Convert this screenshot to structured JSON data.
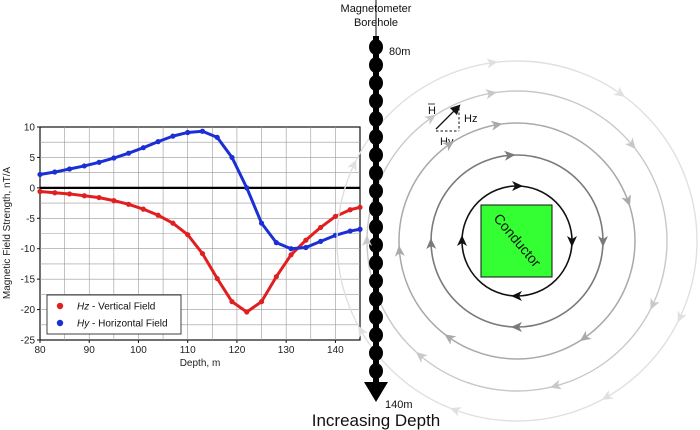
{
  "borehole": {
    "title_line1": "Magnetometer",
    "title_line2": "Borehole",
    "top_depth": "80m",
    "bottom_depth": "140m",
    "direction_label": "Increasing Depth"
  },
  "vector_diagram": {
    "h_label": "H",
    "hz_label": "Hz",
    "hy_label": "Hy"
  },
  "conductor": {
    "label": "Conductor",
    "color": "#33ff33"
  },
  "chart_data": {
    "type": "line",
    "xlabel": "Depth, m",
    "ylabel": "Magnetic Field Strength, nT/A",
    "xlim": [
      80,
      145
    ],
    "ylim": [
      -25,
      10
    ],
    "x_ticks": [
      80,
      90,
      100,
      110,
      120,
      130,
      140
    ],
    "y_ticks": [
      10,
      5,
      0,
      -5,
      -10,
      -15,
      -20,
      -25
    ],
    "grid": true,
    "legend_position": "bottom-left",
    "series": [
      {
        "name": "Hz",
        "legend_suffix": " - Vertical Field",
        "color": "#e02020",
        "x": [
          80,
          83,
          86,
          89,
          92,
          95,
          98,
          101,
          104,
          107,
          110,
          113,
          116,
          119,
          122,
          125,
          128,
          131,
          134,
          137,
          140,
          143,
          145
        ],
        "values": [
          -0.6,
          -0.8,
          -1.0,
          -1.3,
          -1.6,
          -2.1,
          -2.7,
          -3.5,
          -4.5,
          -5.8,
          -7.7,
          -10.8,
          -14.9,
          -18.7,
          -20.4,
          -18.7,
          -14.6,
          -11.0,
          -8.6,
          -6.5,
          -4.7,
          -3.6,
          -3.2
        ]
      },
      {
        "name": "Hy",
        "legend_suffix": " - Horizontal Field",
        "color": "#1c2fd4",
        "x": [
          80,
          83,
          86,
          89,
          92,
          95,
          98,
          101,
          104,
          107,
          110,
          113,
          116,
          119,
          122,
          125,
          128,
          131,
          134,
          137,
          140,
          143,
          145
        ],
        "values": [
          2.2,
          2.6,
          3.1,
          3.6,
          4.2,
          4.9,
          5.7,
          6.6,
          7.6,
          8.5,
          9.1,
          9.3,
          8.3,
          5.0,
          0.0,
          -5.8,
          -9.0,
          -10.0,
          -9.8,
          -8.8,
          -7.8,
          -7.1,
          -6.8
        ]
      }
    ]
  }
}
